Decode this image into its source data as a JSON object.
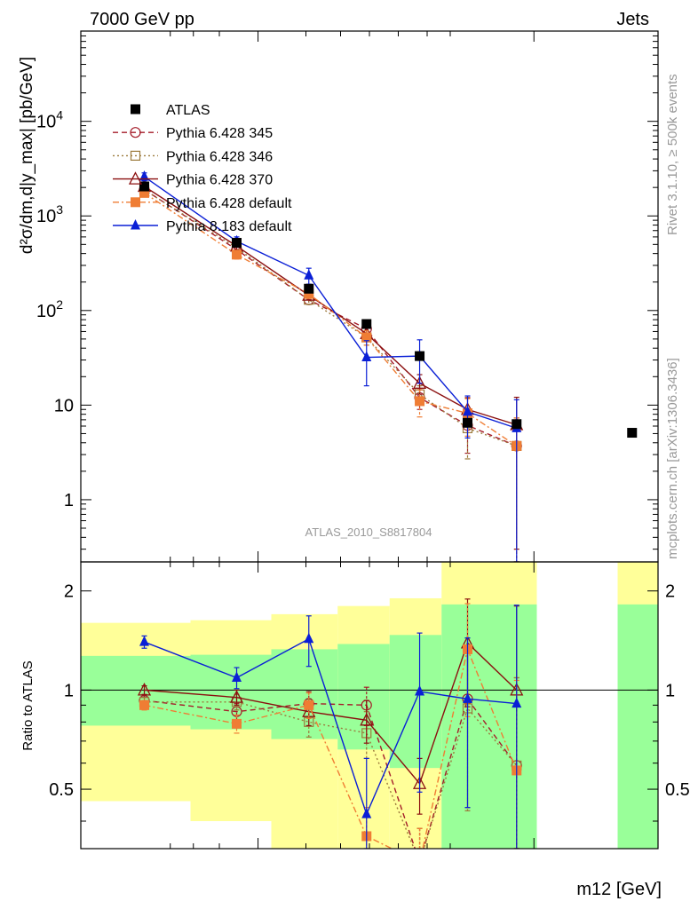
{
  "header": {
    "left": "7000 GeV pp",
    "right": "Jets"
  },
  "side_labels": {
    "rivet": "Rivet 3.1.10, ≥ 500k events",
    "mcplots": "mcplots.cern.ch [arXiv:1306.3436]"
  },
  "watermark": "ATLAS_2010_S8817804",
  "ylabel_main": "d²σ/dm,d|y_max| [pb/GeV]",
  "ylabel_ratio": "Ratio to ATLAS",
  "xlabel": "m12 [GeV]",
  "chart_data": [
    {
      "type": "line",
      "panel": "main",
      "title": "",
      "xlabel": "m12 [GeV]",
      "ylabel": "d²σ/dm,d|y_max| [pb/GeV]",
      "yscale": "log",
      "ylim": [
        0.22,
        90000
      ],
      "xlim": [
        0,
        100
      ],
      "yticks": [
        1,
        10,
        100,
        1000,
        10000
      ],
      "ytick_labels": [
        "1",
        "10",
        "10^2",
        "10^3",
        "10^4"
      ],
      "legend_position": "top-left",
      "x": [
        11,
        27,
        39.5,
        49.5,
        58.7,
        67,
        75.5,
        95.5
      ],
      "series": [
        {
          "name": "ATLAS",
          "style": "data",
          "color": "#000000",
          "marker": "square-filled",
          "values": [
            2050,
            520,
            170,
            72,
            33,
            6.5,
            6.3,
            5.1
          ]
        },
        {
          "name": "Pythia 6.428 345",
          "color": "#a51d2a",
          "dash": "6,4",
          "marker": "circle-open",
          "values": [
            1900,
            440,
            130,
            64,
            12,
            6.1,
            3.7,
            null
          ],
          "errors": [
            150,
            40,
            14,
            10,
            3,
            3,
            3.6,
            null
          ]
        },
        {
          "name": "Pythia 6.428 346",
          "color": "#9c7a3c",
          "dash": "2,3",
          "marker": "square-open",
          "values": [
            1880,
            460,
            130,
            52,
            13,
            5.7,
            3.7,
            null
          ],
          "errors": [
            150,
            40,
            14,
            9,
            3,
            3,
            3.6,
            null
          ]
        },
        {
          "name": "Pythia 6.428 370",
          "color": "#8b1010",
          "dash": "",
          "marker": "triangle-open",
          "values": [
            2050,
            480,
            145,
            57,
            17,
            9,
            6.2,
            null
          ],
          "errors": [
            150,
            40,
            15,
            9,
            4,
            3,
            5.9,
            null
          ]
        },
        {
          "name": "Pythia 6.428 default",
          "color": "#ef7d34",
          "dash": "7,3,2,3",
          "marker": "square-filled",
          "values": [
            1750,
            390,
            150,
            52,
            11,
            8.2,
            3.7,
            null
          ],
          "errors": [
            150,
            40,
            16,
            9,
            3.5,
            3.5,
            3.6,
            null
          ]
        },
        {
          "name": "Pythia 8.183 default",
          "color": "#0a1fd6",
          "dash": "",
          "marker": "triangle-filled",
          "values": [
            2600,
            540,
            235,
            32,
            33,
            8.5,
            5.7,
            null
          ],
          "errors": [
            250,
            60,
            45,
            16,
            16,
            4,
            5.7,
            null
          ]
        }
      ]
    },
    {
      "type": "line",
      "panel": "ratio",
      "ylabel": "Ratio to ATLAS",
      "yscale": "log",
      "ylim": [
        0.33,
        2.45
      ],
      "yticks": [
        0.5,
        1,
        2
      ],
      "ytick_labels": [
        "0.5",
        "1",
        "2"
      ],
      "reference_line": 1,
      "bands": [
        {
          "x0": 0,
          "x1": 19,
          "green": [
            0.78,
            1.27
          ],
          "yellow": [
            0.46,
            1.6
          ]
        },
        {
          "x0": 19,
          "x1": 33,
          "green": [
            0.76,
            1.28
          ],
          "yellow": [
            0.4,
            1.63
          ]
        },
        {
          "x0": 33,
          "x1": 44.5,
          "green": [
            0.71,
            1.33
          ],
          "yellow": [
            0.33,
            1.7
          ]
        },
        {
          "x0": 44.5,
          "x1": 53.5,
          "green": [
            0.66,
            1.38
          ],
          "yellow": [
            0.33,
            1.8
          ]
        },
        {
          "x0": 53.5,
          "x1": 62.5,
          "green": [
            0.58,
            1.47
          ],
          "yellow": [
            0.33,
            1.9
          ]
        },
        {
          "x0": 62.5,
          "x1": 79,
          "green": [
            0.33,
            1.82
          ],
          "yellow": [
            0.33,
            2.45
          ]
        },
        {
          "x0": 93,
          "x1": 100,
          "green": [
            0.33,
            1.82
          ],
          "yellow": [
            0.33,
            2.45
          ]
        }
      ],
      "x": [
        11,
        27,
        39.5,
        49.5,
        58.7,
        67,
        75.5
      ],
      "series": [
        {
          "name": "Pythia 6.428 345",
          "color": "#a51d2a",
          "dash": "6,4",
          "marker": "circle-open",
          "values": [
            0.93,
            0.86,
            0.91,
            0.9,
            0.3,
            0.94,
            0.59
          ],
          "errors": [
            0.03,
            0.05,
            0.08,
            0.12,
            0.08,
            0.5,
            0.5
          ]
        },
        {
          "name": "Pythia 6.428 346",
          "color": "#9c7a3c",
          "dash": "2,3",
          "marker": "square-open",
          "values": [
            0.92,
            0.92,
            0.8,
            0.74,
            0.3,
            0.88,
            0.59
          ],
          "errors": [
            0.03,
            0.05,
            0.08,
            0.12,
            0.08,
            0.45,
            0.5
          ]
        },
        {
          "name": "Pythia 6.428 370",
          "color": "#8b1010",
          "dash": "",
          "marker": "triangle-open",
          "values": [
            1.0,
            0.95,
            0.86,
            0.81,
            0.52,
            1.39,
            1.0
          ],
          "errors": [
            0.03,
            0.05,
            0.08,
            0.12,
            0.1,
            0.5,
            0.8
          ]
        },
        {
          "name": "Pythia 6.428 default",
          "color": "#ef7d34",
          "dash": "7,3,2,3",
          "marker": "square-filled",
          "values": [
            0.9,
            0.79,
            0.9,
            0.36,
            0.3,
            1.33,
            0.57
          ],
          "errors": [
            0.03,
            0.05,
            0.08,
            0.08,
            0.08,
            0.5,
            0.5
          ]
        },
        {
          "name": "Pythia 8.183 default",
          "color": "#0a1fd6",
          "dash": "",
          "marker": "triangle-filled",
          "values": [
            1.4,
            1.09,
            1.43,
            0.42,
            0.99,
            0.94,
            0.91
          ],
          "errors": [
            0.06,
            0.08,
            0.25,
            0.2,
            0.5,
            0.5,
            0.9
          ]
        }
      ]
    }
  ]
}
